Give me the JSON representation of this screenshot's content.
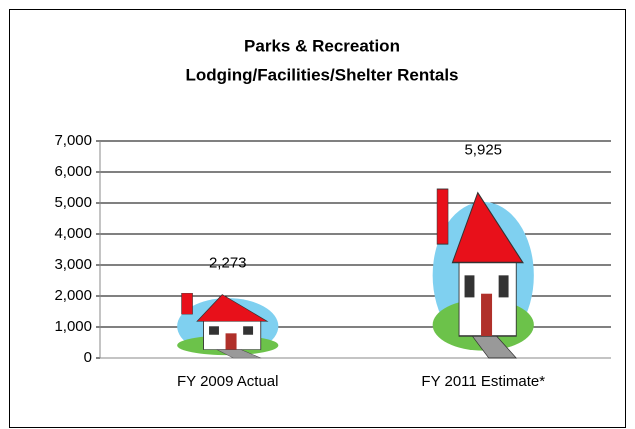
{
  "chart_data": {
    "type": "pictograph",
    "title": [
      "Parks & Recreation",
      "Lodging/Facilities/Shelter Rentals"
    ],
    "categories": [
      "FY 2009 Actual",
      "FY 2011 Estimate*"
    ],
    "values": [
      2273,
      5925
    ],
    "value_labels": [
      "2,273",
      "5,925"
    ],
    "ylim": [
      0,
      7000
    ],
    "yticks": [
      0,
      {
        "value": 1000,
        "label": "1,000"
      },
      {
        "value": 2000,
        "label": "2,000"
      },
      {
        "value": 3000,
        "label": "3,000"
      },
      {
        "value": 4000,
        "label": "4,000"
      },
      {
        "value": 5000,
        "label": "5,000"
      },
      {
        "value": 6000,
        "label": "6,000"
      },
      {
        "value": 7000,
        "label": "7,000"
      }
    ],
    "grid": true,
    "color": "#e8101a"
  }
}
